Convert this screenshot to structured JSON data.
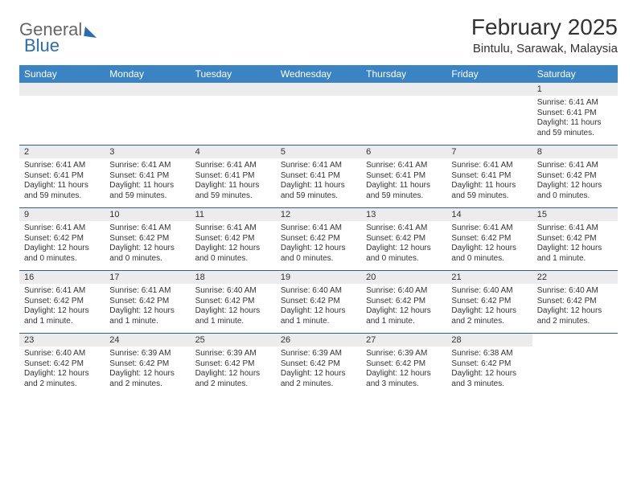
{
  "brand": {
    "part1": "General",
    "part2": "Blue"
  },
  "title": "February 2025",
  "location": "Bintulu, Sarawak, Malaysia",
  "colors": {
    "header_bg": "#3b84c4",
    "header_text": "#ffffff",
    "rule": "#2b5f8c",
    "daynum_bg": "#ececec",
    "text": "#333333",
    "background": "#ffffff"
  },
  "day_headers": [
    "Sunday",
    "Monday",
    "Tuesday",
    "Wednesday",
    "Thursday",
    "Friday",
    "Saturday"
  ],
  "weeks": [
    [
      {
        "n": "",
        "lines": []
      },
      {
        "n": "",
        "lines": []
      },
      {
        "n": "",
        "lines": []
      },
      {
        "n": "",
        "lines": []
      },
      {
        "n": "",
        "lines": []
      },
      {
        "n": "",
        "lines": []
      },
      {
        "n": "1",
        "lines": [
          "Sunrise: 6:41 AM",
          "Sunset: 6:41 PM",
          "Daylight: 11 hours and 59 minutes."
        ]
      }
    ],
    [
      {
        "n": "2",
        "lines": [
          "Sunrise: 6:41 AM",
          "Sunset: 6:41 PM",
          "Daylight: 11 hours and 59 minutes."
        ]
      },
      {
        "n": "3",
        "lines": [
          "Sunrise: 6:41 AM",
          "Sunset: 6:41 PM",
          "Daylight: 11 hours and 59 minutes."
        ]
      },
      {
        "n": "4",
        "lines": [
          "Sunrise: 6:41 AM",
          "Sunset: 6:41 PM",
          "Daylight: 11 hours and 59 minutes."
        ]
      },
      {
        "n": "5",
        "lines": [
          "Sunrise: 6:41 AM",
          "Sunset: 6:41 PM",
          "Daylight: 11 hours and 59 minutes."
        ]
      },
      {
        "n": "6",
        "lines": [
          "Sunrise: 6:41 AM",
          "Sunset: 6:41 PM",
          "Daylight: 11 hours and 59 minutes."
        ]
      },
      {
        "n": "7",
        "lines": [
          "Sunrise: 6:41 AM",
          "Sunset: 6:41 PM",
          "Daylight: 11 hours and 59 minutes."
        ]
      },
      {
        "n": "8",
        "lines": [
          "Sunrise: 6:41 AM",
          "Sunset: 6:42 PM",
          "Daylight: 12 hours and 0 minutes."
        ]
      }
    ],
    [
      {
        "n": "9",
        "lines": [
          "Sunrise: 6:41 AM",
          "Sunset: 6:42 PM",
          "Daylight: 12 hours and 0 minutes."
        ]
      },
      {
        "n": "10",
        "lines": [
          "Sunrise: 6:41 AM",
          "Sunset: 6:42 PM",
          "Daylight: 12 hours and 0 minutes."
        ]
      },
      {
        "n": "11",
        "lines": [
          "Sunrise: 6:41 AM",
          "Sunset: 6:42 PM",
          "Daylight: 12 hours and 0 minutes."
        ]
      },
      {
        "n": "12",
        "lines": [
          "Sunrise: 6:41 AM",
          "Sunset: 6:42 PM",
          "Daylight: 12 hours and 0 minutes."
        ]
      },
      {
        "n": "13",
        "lines": [
          "Sunrise: 6:41 AM",
          "Sunset: 6:42 PM",
          "Daylight: 12 hours and 0 minutes."
        ]
      },
      {
        "n": "14",
        "lines": [
          "Sunrise: 6:41 AM",
          "Sunset: 6:42 PM",
          "Daylight: 12 hours and 0 minutes."
        ]
      },
      {
        "n": "15",
        "lines": [
          "Sunrise: 6:41 AM",
          "Sunset: 6:42 PM",
          "Daylight: 12 hours and 1 minute."
        ]
      }
    ],
    [
      {
        "n": "16",
        "lines": [
          "Sunrise: 6:41 AM",
          "Sunset: 6:42 PM",
          "Daylight: 12 hours and 1 minute."
        ]
      },
      {
        "n": "17",
        "lines": [
          "Sunrise: 6:41 AM",
          "Sunset: 6:42 PM",
          "Daylight: 12 hours and 1 minute."
        ]
      },
      {
        "n": "18",
        "lines": [
          "Sunrise: 6:40 AM",
          "Sunset: 6:42 PM",
          "Daylight: 12 hours and 1 minute."
        ]
      },
      {
        "n": "19",
        "lines": [
          "Sunrise: 6:40 AM",
          "Sunset: 6:42 PM",
          "Daylight: 12 hours and 1 minute."
        ]
      },
      {
        "n": "20",
        "lines": [
          "Sunrise: 6:40 AM",
          "Sunset: 6:42 PM",
          "Daylight: 12 hours and 1 minute."
        ]
      },
      {
        "n": "21",
        "lines": [
          "Sunrise: 6:40 AM",
          "Sunset: 6:42 PM",
          "Daylight: 12 hours and 2 minutes."
        ]
      },
      {
        "n": "22",
        "lines": [
          "Sunrise: 6:40 AM",
          "Sunset: 6:42 PM",
          "Daylight: 12 hours and 2 minutes."
        ]
      }
    ],
    [
      {
        "n": "23",
        "lines": [
          "Sunrise: 6:40 AM",
          "Sunset: 6:42 PM",
          "Daylight: 12 hours and 2 minutes."
        ]
      },
      {
        "n": "24",
        "lines": [
          "Sunrise: 6:39 AM",
          "Sunset: 6:42 PM",
          "Daylight: 12 hours and 2 minutes."
        ]
      },
      {
        "n": "25",
        "lines": [
          "Sunrise: 6:39 AM",
          "Sunset: 6:42 PM",
          "Daylight: 12 hours and 2 minutes."
        ]
      },
      {
        "n": "26",
        "lines": [
          "Sunrise: 6:39 AM",
          "Sunset: 6:42 PM",
          "Daylight: 12 hours and 2 minutes."
        ]
      },
      {
        "n": "27",
        "lines": [
          "Sunrise: 6:39 AM",
          "Sunset: 6:42 PM",
          "Daylight: 12 hours and 3 minutes."
        ]
      },
      {
        "n": "28",
        "lines": [
          "Sunrise: 6:38 AM",
          "Sunset: 6:42 PM",
          "Daylight: 12 hours and 3 minutes."
        ]
      },
      {
        "n": "",
        "lines": []
      }
    ]
  ]
}
